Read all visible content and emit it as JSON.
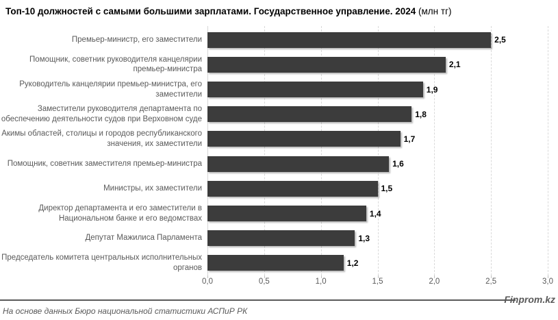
{
  "title": {
    "main": "Топ-10 должностей с самыми большими зарплатами. Государственное управление. 2024",
    "unit": " (млн тг)"
  },
  "chart_data": {
    "type": "bar",
    "orientation": "horizontal",
    "title": "Топ-10 должностей с самыми большими зарплатами. Государственное управление. 2024 (млн тг)",
    "categories": [
      "Премьер-министр, его заместители",
      "Помощник, советник руководителя канцелярии премьер-министра",
      "Руководитель канцелярии премьер-министра, его заместители",
      "Заместители руководителя департамента по обеспечению деятельности судов при Верховном суде",
      "Акимы областей, столицы и городов республиканского значения, их заместители",
      "Помощник, советник заместителя премьер-министра",
      "Министры, их заместители",
      "Директор департамента и его заместители в Национальном банке и его ведомствах",
      "Депутат Мажилиса Парламента",
      "Председатель комитета центральных исполнительных органов"
    ],
    "values": [
      2.5,
      2.1,
      1.9,
      1.8,
      1.7,
      1.6,
      1.5,
      1.4,
      1.3,
      1.2
    ],
    "value_labels": [
      "2,5",
      "2,1",
      "1,9",
      "1,8",
      "1,7",
      "1,6",
      "1,5",
      "1,4",
      "1,3",
      "1,2"
    ],
    "xlim": [
      0,
      3.0
    ],
    "x_ticks": [
      "0,0",
      "0,5",
      "1,0",
      "1,5",
      "2,0",
      "2,5",
      "3,0"
    ],
    "x_tick_values": [
      0,
      0.5,
      1.0,
      1.5,
      2.0,
      2.5,
      3.0
    ],
    "grid": "vertical-dashed",
    "legend": "none",
    "bar_color": "#3c3c3c",
    "grid_color": "#d9d9d9",
    "label_color": "#595959"
  },
  "footer": {
    "source": "На основе данных Бюро национальной статистики АСПиР РК",
    "watermark": "Finprom.kz"
  }
}
